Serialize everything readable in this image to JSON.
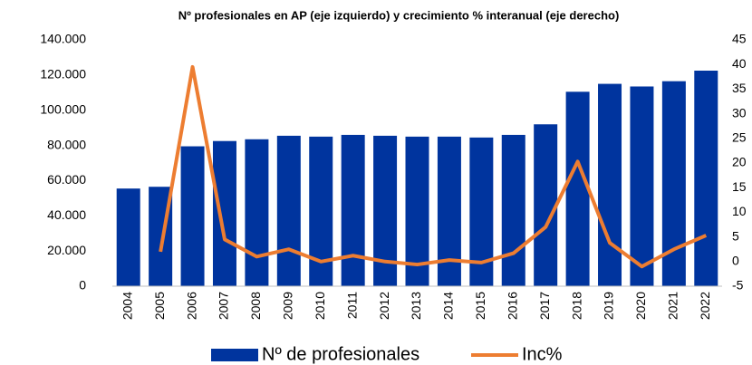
{
  "chart_data": {
    "type": "bar_line",
    "title": "Nº profesionales en AP (eje izquierdo) y crecimiento % interanual (eje derecho)",
    "categories": [
      "2004",
      "2005",
      "2006",
      "2007",
      "2008",
      "2009",
      "2010",
      "2011",
      "2012",
      "2013",
      "2014",
      "2015",
      "2016",
      "2017",
      "2018",
      "2019",
      "2020",
      "2021",
      "2022"
    ],
    "series": [
      {
        "name": "Nº de profesionales",
        "type": "bar",
        "color": "#00349e",
        "values": [
          55500,
          56500,
          79500,
          82500,
          83500,
          85500,
          85000,
          86000,
          85500,
          85000,
          85000,
          84500,
          86000,
          92000,
          110500,
          115000,
          113500,
          116500,
          122500
        ]
      },
      {
        "name": "Inc%",
        "type": "line",
        "axis": "y2",
        "color": "#ed7d31",
        "values": [
          null,
          2,
          39.5,
          4.5,
          1,
          2.5,
          0,
          1.2,
          0,
          -0.6,
          0.3,
          -0.2,
          1.7,
          7,
          20.3,
          3.8,
          -1,
          2.5,
          5.3
        ]
      }
    ],
    "ylim": [
      0,
      140000
    ],
    "yticks": [
      {
        "value": 0,
        "label": "0"
      },
      {
        "value": 20000,
        "label": "20.000"
      },
      {
        "value": 40000,
        "label": "40.000"
      },
      {
        "value": 60000,
        "label": "60.000"
      },
      {
        "value": 80000,
        "label": "80.000"
      },
      {
        "value": 100000,
        "label": "100.000"
      },
      {
        "value": 120000,
        "label": "120.000"
      },
      {
        "value": 140000,
        "label": "140.000"
      }
    ],
    "y2lim": [
      -5,
      45
    ],
    "y2ticks": [
      -5,
      0,
      5,
      10,
      15,
      20,
      25,
      30,
      35,
      40,
      45
    ],
    "legend": "bottom"
  }
}
